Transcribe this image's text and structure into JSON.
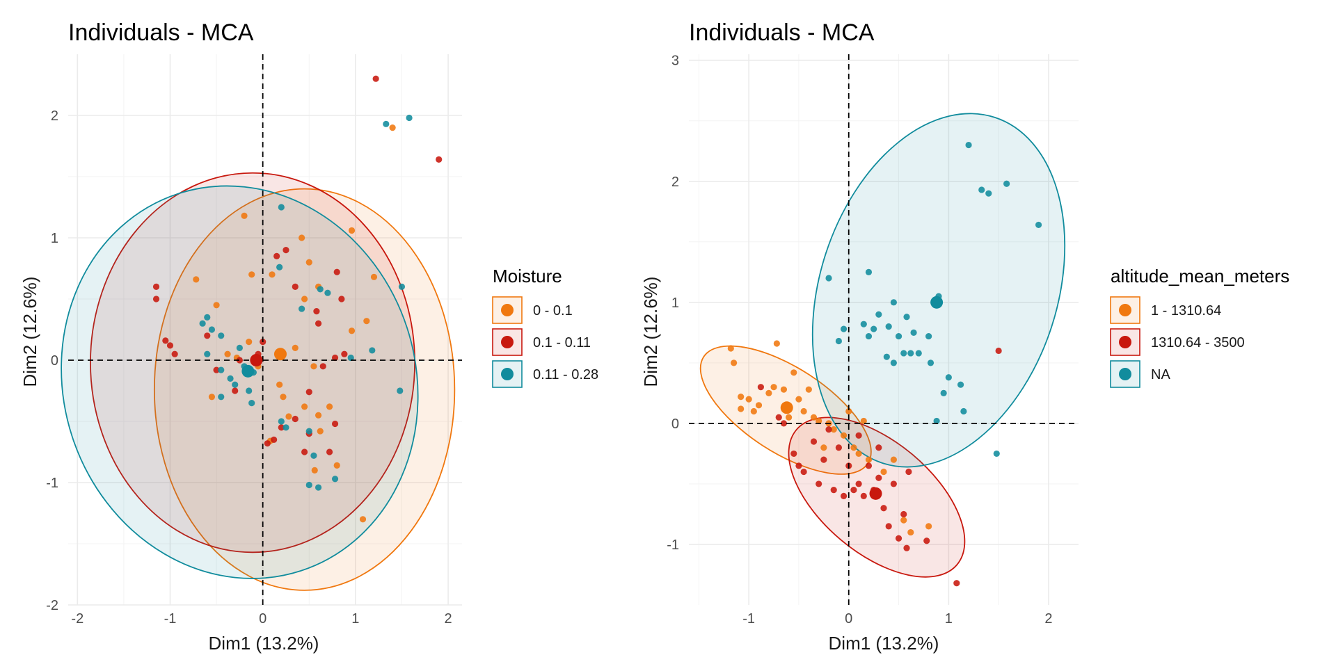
{
  "chart_data": [
    {
      "type": "scatter",
      "title": "Individuals - MCA",
      "xlabel": "Dim1 (13.2%)",
      "ylabel": "Dim2 (12.6%)",
      "xlim": [
        -2.1,
        2.15
      ],
      "ylim": [
        -2.0,
        2.5
      ],
      "x_ticks": [
        -2,
        -1,
        0,
        1,
        2
      ],
      "y_ticks": [
        -2,
        -1,
        0,
        1,
        2
      ],
      "x_minor": [
        -1.5,
        -0.5,
        0.5,
        1.5
      ],
      "y_minor": [
        -1.5,
        -0.5,
        0.5,
        1.5
      ],
      "grid": true,
      "legend": {
        "title": "Moisture",
        "position": "right"
      },
      "series": [
        {
          "name": "0 - 0.1",
          "color": "#f0780f",
          "centroid": [
            0.19,
            0.05
          ],
          "ellipse": {
            "cx": 0.45,
            "cy": -0.24,
            "rx": 1.62,
            "ry": 1.64,
            "rotation": 0
          },
          "points": [
            [
              -0.2,
              1.18
            ],
            [
              -0.72,
              0.66
            ],
            [
              0.42,
              1.0
            ],
            [
              0.5,
              0.8
            ],
            [
              0.96,
              1.06
            ],
            [
              1.12,
              0.32
            ],
            [
              0.96,
              0.24
            ],
            [
              1.08,
              -1.3
            ],
            [
              1.4,
              1.9
            ],
            [
              1.2,
              0.68
            ],
            [
              0.6,
              0.6
            ],
            [
              0.45,
              0.5
            ],
            [
              0.1,
              0.7
            ],
            [
              -0.5,
              0.45
            ],
            [
              -0.38,
              0.05
            ],
            [
              -0.28,
              0.02
            ],
            [
              0.35,
              0.1
            ],
            [
              0.55,
              -0.05
            ],
            [
              -0.15,
              0.15
            ],
            [
              0.22,
              -0.3
            ],
            [
              0.28,
              -0.46
            ],
            [
              0.45,
              -0.38
            ],
            [
              0.6,
              -0.45
            ],
            [
              0.72,
              -0.38
            ],
            [
              0.08,
              -0.66
            ],
            [
              0.56,
              -0.9
            ],
            [
              0.8,
              -0.86
            ],
            [
              -0.12,
              0.7
            ],
            [
              0.62,
              -0.58
            ],
            [
              0.18,
              -0.2
            ],
            [
              -0.05,
              -0.05
            ],
            [
              -0.55,
              -0.3
            ]
          ]
        },
        {
          "name": "0.1 - 0.11",
          "color": "#c8180e",
          "centroid": [
            -0.07,
            0.0
          ],
          "ellipse": {
            "cx": -0.11,
            "cy": -0.02,
            "rx": 1.75,
            "ry": 1.55,
            "rotation": 0
          },
          "points": [
            [
              1.22,
              2.3
            ],
            [
              1.9,
              1.64
            ],
            [
              -1.15,
              0.6
            ],
            [
              -1.15,
              0.5
            ],
            [
              -1.05,
              0.16
            ],
            [
              -1.0,
              0.12
            ],
            [
              -0.95,
              0.05
            ],
            [
              -0.6,
              0.2
            ],
            [
              -0.5,
              -0.08
            ],
            [
              0.0,
              0.15
            ],
            [
              0.15,
              0.85
            ],
            [
              0.25,
              0.9
            ],
            [
              0.35,
              0.6
            ],
            [
              0.8,
              0.72
            ],
            [
              0.58,
              0.4
            ],
            [
              0.85,
              0.5
            ],
            [
              0.78,
              0.02
            ],
            [
              0.88,
              0.05
            ],
            [
              0.5,
              -0.26
            ],
            [
              0.78,
              -0.52
            ],
            [
              0.35,
              -0.48
            ],
            [
              0.5,
              -0.6
            ],
            [
              0.72,
              -0.75
            ],
            [
              0.12,
              -0.65
            ],
            [
              -0.25,
              0.0
            ],
            [
              -0.3,
              -0.25
            ],
            [
              -0.05,
              0.05
            ],
            [
              0.45,
              -0.75
            ],
            [
              0.6,
              0.3
            ],
            [
              0.65,
              -0.05
            ],
            [
              0.2,
              -0.55
            ],
            [
              0.05,
              -0.68
            ]
          ]
        },
        {
          "name": "0.11 - 0.28",
          "color": "#118c9d",
          "centroid": [
            -0.16,
            -0.09
          ],
          "ellipse": {
            "cx": -0.25,
            "cy": -0.18,
            "rx": 1.9,
            "ry": 1.62,
            "rotation": 18
          },
          "points": [
            [
              1.33,
              1.93
            ],
            [
              1.58,
              1.98
            ],
            [
              1.5,
              0.6
            ],
            [
              0.2,
              1.25
            ],
            [
              0.18,
              0.76
            ],
            [
              0.62,
              0.58
            ],
            [
              0.7,
              0.55
            ],
            [
              0.42,
              0.42
            ],
            [
              -0.45,
              0.2
            ],
            [
              -0.55,
              0.25
            ],
            [
              -0.6,
              0.35
            ],
            [
              -0.65,
              0.3
            ],
            [
              -0.6,
              0.05
            ],
            [
              -0.45,
              -0.08
            ],
            [
              -0.35,
              -0.15
            ],
            [
              -0.1,
              -0.1
            ],
            [
              -0.15,
              -0.25
            ],
            [
              -0.12,
              -0.35
            ],
            [
              0.2,
              -0.5
            ],
            [
              0.25,
              -0.55
            ],
            [
              0.5,
              -0.58
            ],
            [
              0.55,
              -0.78
            ],
            [
              0.5,
              -1.02
            ],
            [
              0.6,
              -1.04
            ],
            [
              0.78,
              -0.97
            ],
            [
              0.95,
              0.02
            ],
            [
              1.18,
              0.08
            ],
            [
              1.48,
              -0.25
            ],
            [
              -0.2,
              -0.05
            ],
            [
              -0.25,
              0.1
            ],
            [
              -0.3,
              -0.2
            ],
            [
              -0.45,
              -0.3
            ]
          ]
        }
      ]
    },
    {
      "type": "scatter",
      "title": "Individuals - MCA",
      "xlabel": "Dim1 (13.2%)",
      "ylabel": "Dim2 (12.6%)",
      "xlim": [
        -1.6,
        2.3
      ],
      "ylim": [
        -1.5,
        3.05
      ],
      "x_ticks": [
        -1,
        0,
        1,
        2
      ],
      "y_ticks": [
        -1,
        0,
        1,
        2,
        3
      ],
      "x_minor": [
        -1.5,
        -0.5,
        0.5,
        1.5
      ],
      "y_minor": [
        -0.5,
        0.5,
        1.5,
        2.5
      ],
      "grid": true,
      "legend": {
        "title": "altitude_mean_meters",
        "position": "right"
      },
      "series": [
        {
          "name": "1 - 1310.64",
          "color": "#f0780f",
          "centroid": [
            -0.62,
            0.13
          ],
          "ellipse": {
            "cx": -0.63,
            "cy": 0.11,
            "rx": 0.98,
            "ry": 0.35,
            "rotation": -33
          },
          "points": [
            [
              -1.18,
              0.62
            ],
            [
              -1.15,
              0.5
            ],
            [
              -0.72,
              0.66
            ],
            [
              -1.08,
              0.22
            ],
            [
              -1.08,
              0.12
            ],
            [
              -1.0,
              0.2
            ],
            [
              -0.95,
              0.1
            ],
            [
              -0.9,
              0.15
            ],
            [
              -0.8,
              0.25
            ],
            [
              -0.75,
              0.3
            ],
            [
              -0.65,
              0.28
            ],
            [
              -0.55,
              0.42
            ],
            [
              -0.5,
              0.2
            ],
            [
              -0.45,
              0.1
            ],
            [
              -0.4,
              0.28
            ],
            [
              -0.35,
              0.05
            ],
            [
              -0.3,
              0.02
            ],
            [
              -0.2,
              0.0
            ],
            [
              -0.15,
              -0.05
            ],
            [
              -0.05,
              -0.1
            ],
            [
              0.0,
              0.1
            ],
            [
              0.05,
              -0.2
            ],
            [
              0.1,
              -0.25
            ],
            [
              0.2,
              -0.3
            ],
            [
              0.35,
              -0.4
            ],
            [
              0.45,
              -0.3
            ],
            [
              0.55,
              -0.8
            ],
            [
              0.62,
              -0.9
            ],
            [
              0.8,
              -0.85
            ],
            [
              -0.25,
              -0.2
            ],
            [
              -0.6,
              0.05
            ],
            [
              0.15,
              0.02
            ]
          ]
        },
        {
          "name": "1310.64 - 3500",
          "color": "#c8180e",
          "centroid": [
            0.27,
            -0.58
          ],
          "ellipse": {
            "cx": 0.28,
            "cy": -0.61,
            "rx": 1.05,
            "ry": 0.46,
            "rotation": -40
          },
          "points": [
            [
              -0.88,
              0.3
            ],
            [
              -0.7,
              0.05
            ],
            [
              -0.65,
              0.0
            ],
            [
              -0.55,
              -0.25
            ],
            [
              -0.5,
              -0.35
            ],
            [
              -0.45,
              -0.4
            ],
            [
              -0.35,
              -0.15
            ],
            [
              -0.25,
              -0.3
            ],
            [
              -0.2,
              -0.05
            ],
            [
              -0.1,
              -0.2
            ],
            [
              0.0,
              -0.35
            ],
            [
              0.05,
              -0.55
            ],
            [
              0.1,
              -0.5
            ],
            [
              0.15,
              -0.6
            ],
            [
              0.25,
              -0.55
            ],
            [
              0.3,
              -0.45
            ],
            [
              0.35,
              -0.7
            ],
            [
              0.45,
              -0.5
            ],
            [
              0.55,
              -0.75
            ],
            [
              0.5,
              -0.95
            ],
            [
              0.58,
              -1.03
            ],
            [
              0.78,
              -0.97
            ],
            [
              1.08,
              -1.32
            ],
            [
              1.5,
              0.6
            ],
            [
              -0.05,
              -0.6
            ],
            [
              0.4,
              -0.85
            ],
            [
              0.2,
              -0.35
            ],
            [
              -0.3,
              -0.5
            ],
            [
              0.1,
              -0.1
            ],
            [
              0.6,
              -0.4
            ],
            [
              -0.15,
              -0.55
            ],
            [
              0.3,
              -0.2
            ]
          ]
        },
        {
          "name": "NA",
          "color": "#118c9d",
          "centroid": [
            0.88,
            1.0
          ],
          "ellipse": {
            "cx": 0.9,
            "cy": 1.1,
            "rx": 1.82,
            "ry": 0.98,
            "rotation": 72
          },
          "points": [
            [
              1.2,
              2.3
            ],
            [
              1.33,
              1.93
            ],
            [
              1.4,
              1.9
            ],
            [
              1.58,
              1.98
            ],
            [
              1.9,
              1.64
            ],
            [
              0.2,
              1.25
            ],
            [
              -0.2,
              1.2
            ],
            [
              0.9,
              1.05
            ],
            [
              0.45,
              1.0
            ],
            [
              0.3,
              0.9
            ],
            [
              0.58,
              0.88
            ],
            [
              0.4,
              0.8
            ],
            [
              0.15,
              0.82
            ],
            [
              0.25,
              0.78
            ],
            [
              0.65,
              0.75
            ],
            [
              -0.05,
              0.78
            ],
            [
              0.2,
              0.72
            ],
            [
              0.5,
              0.72
            ],
            [
              0.8,
              0.72
            ],
            [
              -0.1,
              0.68
            ],
            [
              0.55,
              0.58
            ],
            [
              0.62,
              0.58
            ],
            [
              0.7,
              0.58
            ],
            [
              0.38,
              0.55
            ],
            [
              0.45,
              0.5
            ],
            [
              0.82,
              0.5
            ],
            [
              1.0,
              0.38
            ],
            [
              0.95,
              0.25
            ],
            [
              1.12,
              0.32
            ],
            [
              1.15,
              0.1
            ],
            [
              0.88,
              0.02
            ],
            [
              1.48,
              -0.25
            ]
          ]
        }
      ]
    }
  ]
}
